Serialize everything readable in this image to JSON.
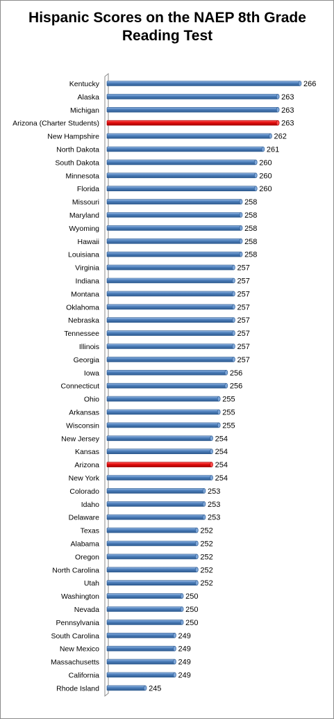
{
  "chart_data": {
    "type": "bar",
    "orientation": "horizontal",
    "title": "Hispanic Scores on the NAEP 8th Grade Reading Test",
    "xlabel": "",
    "ylabel": "",
    "xlim": [
      240,
      268
    ],
    "grid": false,
    "legend": "none",
    "data_labels": true,
    "colors": {
      "default_bar": "#4f81bd",
      "highlight_bar": "#e81010"
    },
    "categories": [
      "Kentucky",
      "Alaska",
      "Michigan",
      "Arizona (Charter Students)",
      "New Hampshire",
      "North Dakota",
      "South Dakota",
      "Minnesota",
      "Florida",
      "Missouri",
      "Maryland",
      "Wyoming",
      "Hawaii",
      "Louisiana",
      "Virginia",
      "Indiana",
      "Montana",
      "Oklahoma",
      "Nebraska",
      "Tennessee",
      "Illinois",
      "Georgia",
      "Iowa",
      "Connecticut",
      "Ohio",
      "Arkansas",
      "Wisconsin",
      "New Jersey",
      "Kansas",
      "Arizona",
      "New York",
      "Colorado",
      "Idaho",
      "Delaware",
      "Texas",
      "Alabama",
      "Oregon",
      "North Carolina",
      "Utah",
      "Washington",
      "Nevada",
      "Pennsylvania",
      "South Carolina",
      "New Mexico",
      "Massachusetts",
      "California",
      "Rhode Island"
    ],
    "values": [
      266,
      263,
      263,
      263,
      262,
      261,
      260,
      260,
      260,
      258,
      258,
      258,
      258,
      258,
      257,
      257,
      257,
      257,
      257,
      257,
      257,
      257,
      256,
      256,
      255,
      255,
      255,
      254,
      254,
      254,
      254,
      253,
      253,
      253,
      252,
      252,
      252,
      252,
      252,
      250,
      250,
      250,
      249,
      249,
      249,
      249,
      245
    ],
    "highlighted": [
      "Arizona (Charter Students)",
      "Arizona"
    ]
  }
}
